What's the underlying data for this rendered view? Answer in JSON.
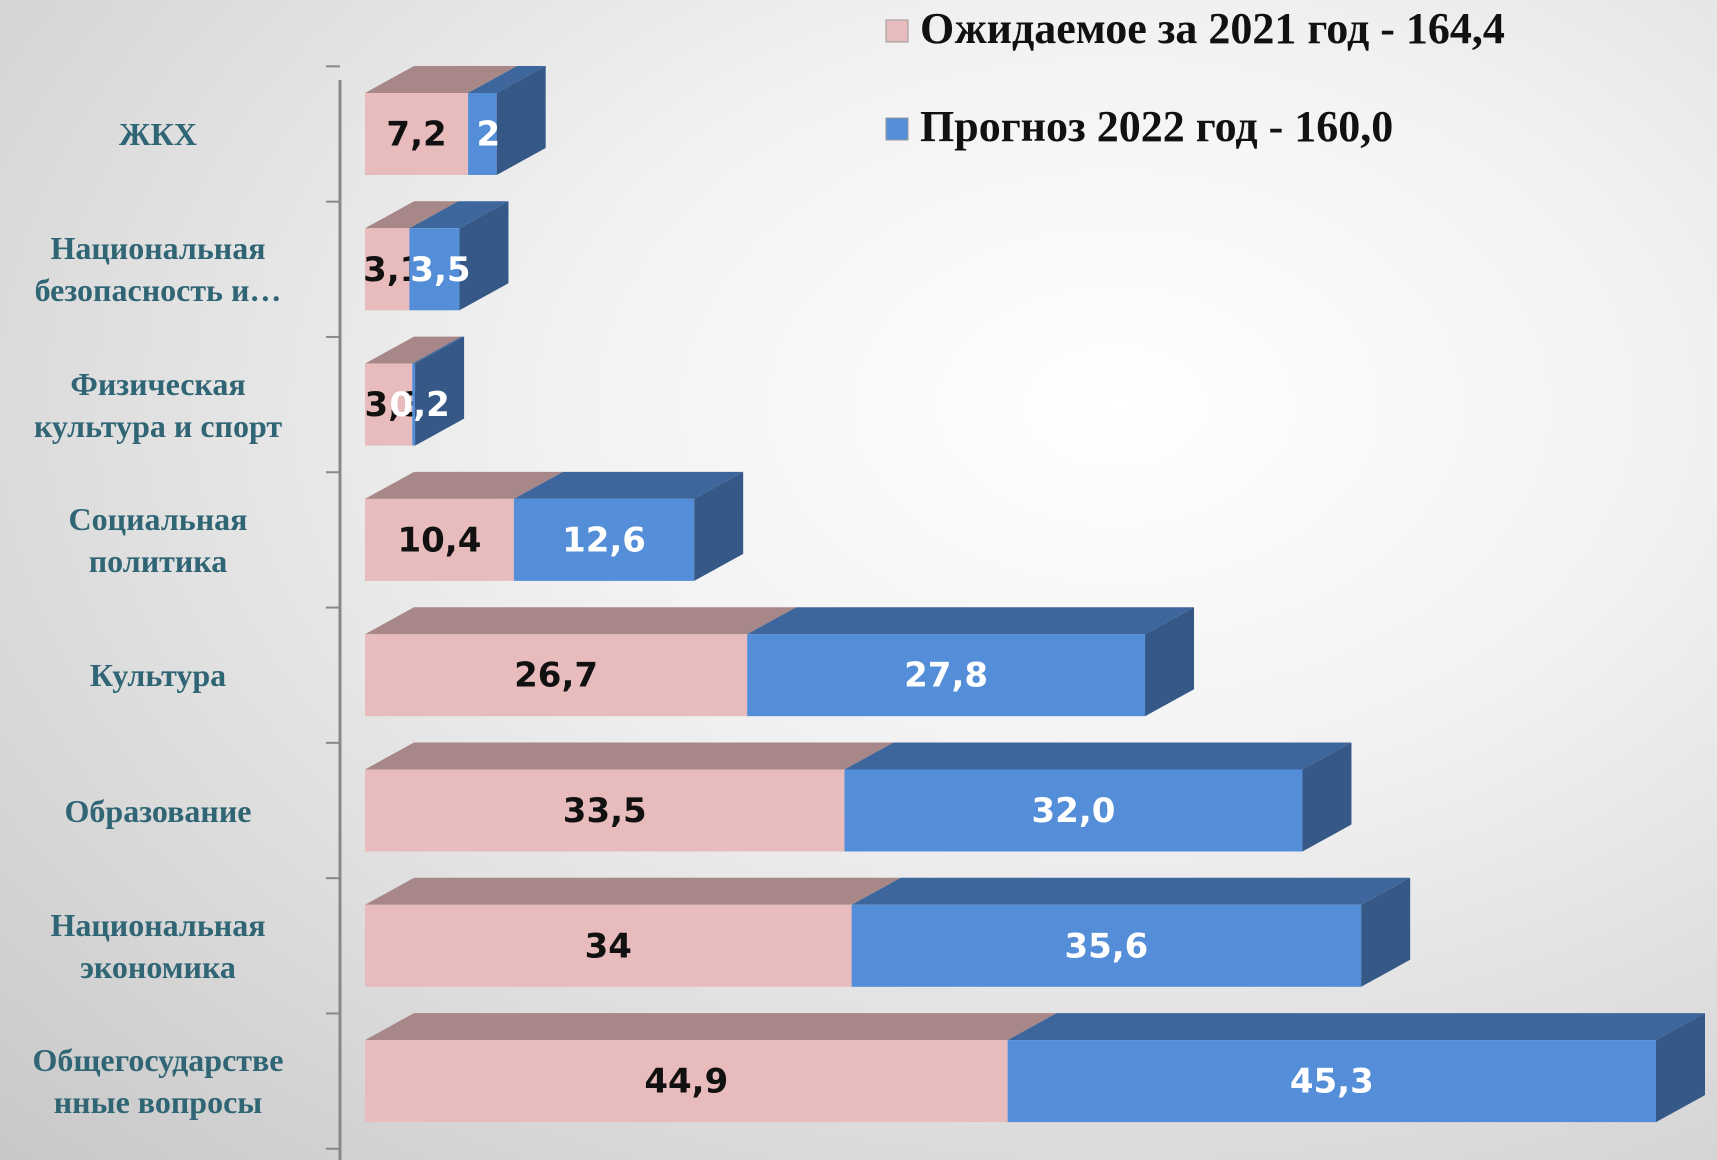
{
  "chart_data": {
    "type": "bar3d_stacked_h",
    "categories": [
      "ЖКХ",
      "Национальная\nбезопасность и…",
      "Физическая\nкультура и спорт",
      "Социальная\nполитика",
      "Культура",
      "Образование",
      "Национальная\nэкономика",
      "Общегосударстве\nнные вопросы"
    ],
    "series": [
      {
        "name": "Ожидаемое за 2021 год - 164,4",
        "color": "#e8bcbc",
        "values": [
          7.2,
          3.1,
          3.3,
          10.4,
          26.7,
          33.5,
          34,
          44.9
        ],
        "value_labels": [
          "7,2",
          "3,1",
          "3,3",
          "10,4",
          "26,7",
          "33,5",
          "34",
          "44,9"
        ]
      },
      {
        "name": "Прогноз 2022 год - 160,0",
        "color": "#558ed8",
        "values": [
          2,
          3.5,
          0.2,
          12.6,
          27.8,
          32.0,
          35.6,
          45.3
        ],
        "value_labels": [
          "2",
          "3,5",
          "0,2",
          "12,6",
          "27,8",
          "32,0",
          "35,6",
          "45,3"
        ]
      }
    ],
    "legend": "top-right"
  }
}
